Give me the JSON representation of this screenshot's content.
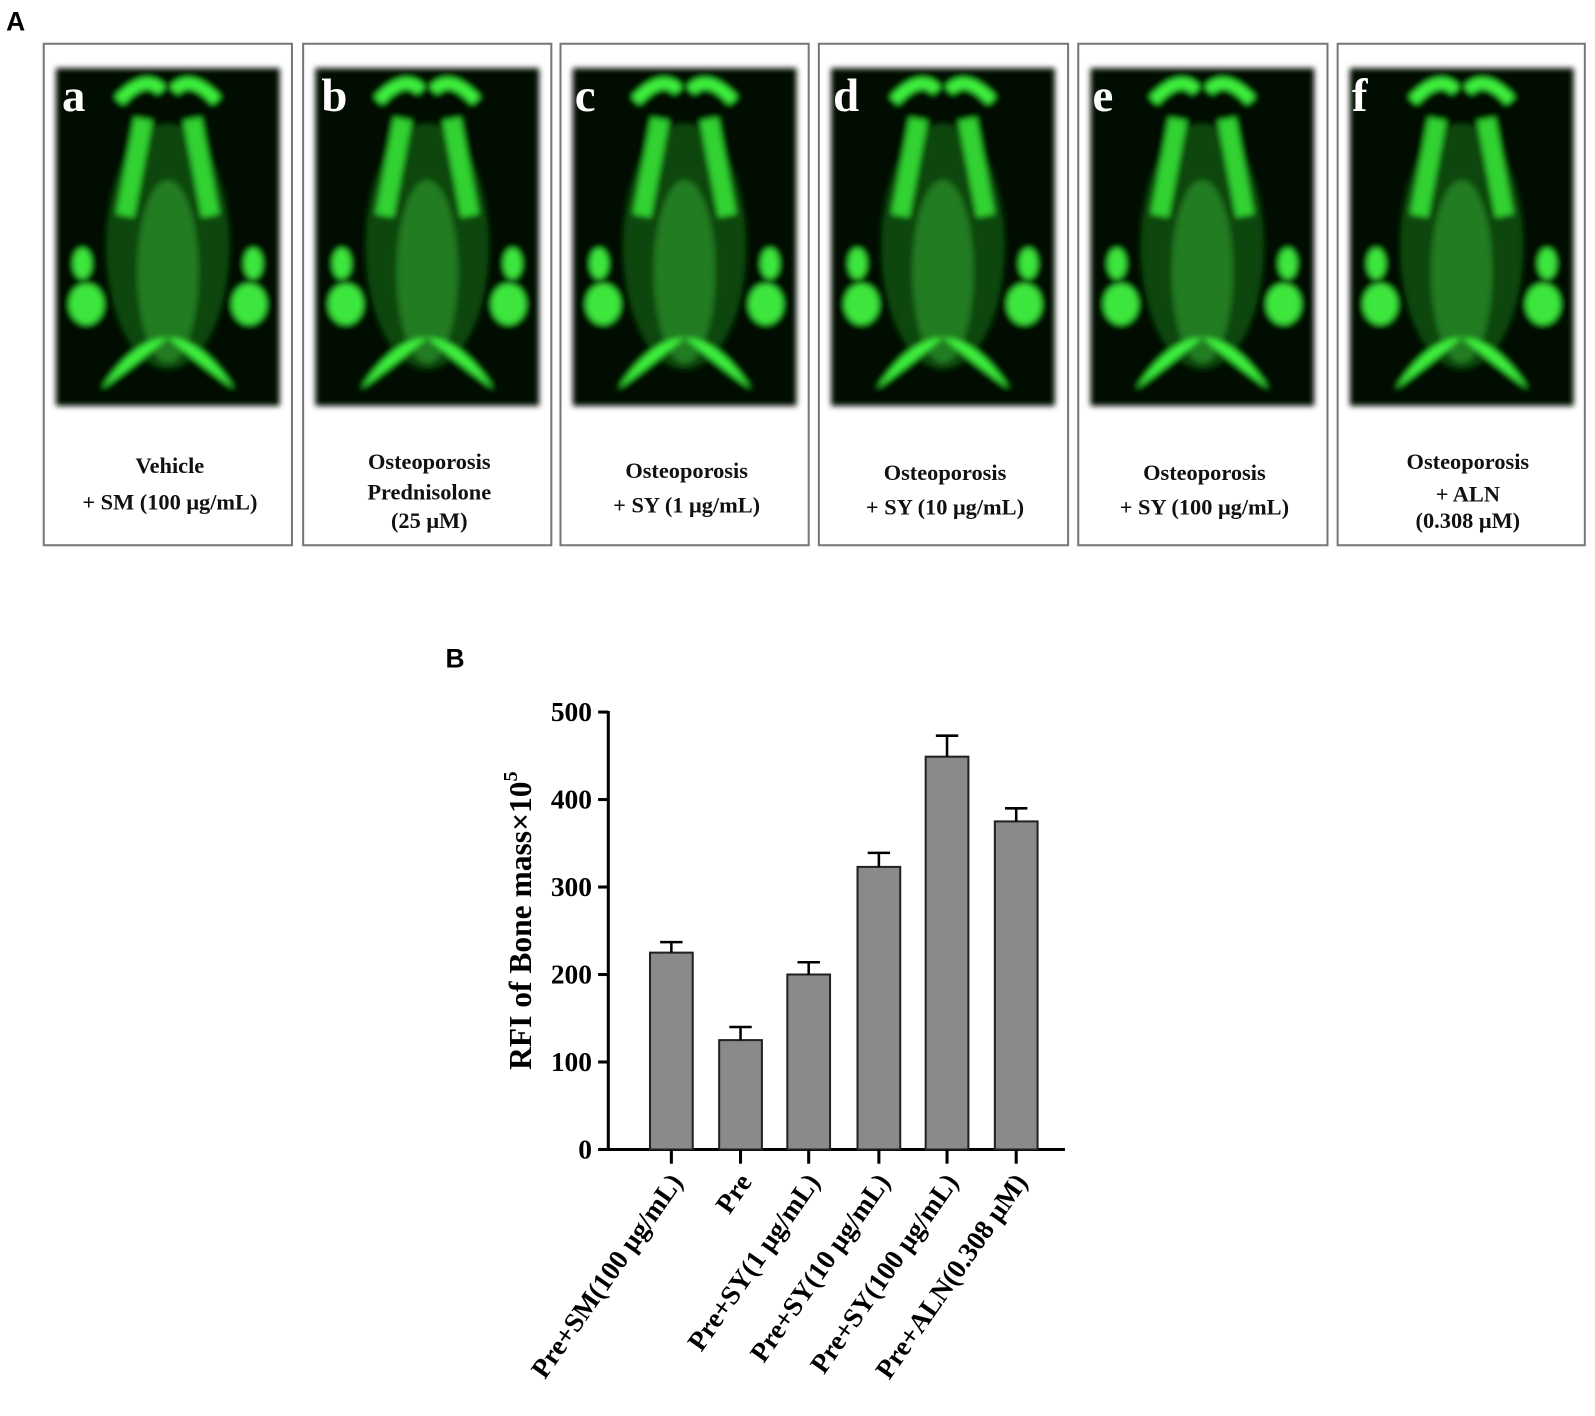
{
  "panel_a": {
    "label": "A",
    "panels": [
      {
        "letter": "a",
        "caption": [
          "Vehicle",
          "+ SM (100 μg/mL)"
        ]
      },
      {
        "letter": "b",
        "caption": [
          "Osteoporosis",
          "Prednisolone",
          "(25 μM)"
        ]
      },
      {
        "letter": "c",
        "caption": [
          "Osteoporosis",
          "+ SY (1 μg/mL)"
        ]
      },
      {
        "letter": "d",
        "caption": [
          "Osteoporosis",
          "+ SY (10 μg/mL)"
        ]
      },
      {
        "letter": "e",
        "caption": [
          "Osteoporosis",
          "+ SY (100 μg/mL)"
        ]
      },
      {
        "letter": "f",
        "caption": [
          "Osteoporosis",
          "+ ALN",
          "(0.308 μM)"
        ]
      }
    ]
  },
  "chart_data": {
    "type": "bar",
    "panel_label": "B",
    "ylabel": "RFI of Bone mass×10",
    "ylabel_exponent": "5",
    "categories": [
      "Pre+SM(100 μg/mL)",
      "Pre",
      "Pre+SY(1 μg/mL)",
      "Pre+SY(10 μg/mL)",
      "Pre+SY(100 μg/mL)",
      "Pre+ALN(0.308 μM)"
    ],
    "values": [
      225,
      125,
      200,
      323,
      449,
      375
    ],
    "errors": [
      12,
      15,
      14,
      16,
      24,
      15
    ],
    "color": "#8a8a8a",
    "ylim": [
      0,
      500
    ],
    "yticks": [
      0,
      100,
      200,
      300,
      400,
      500
    ]
  }
}
